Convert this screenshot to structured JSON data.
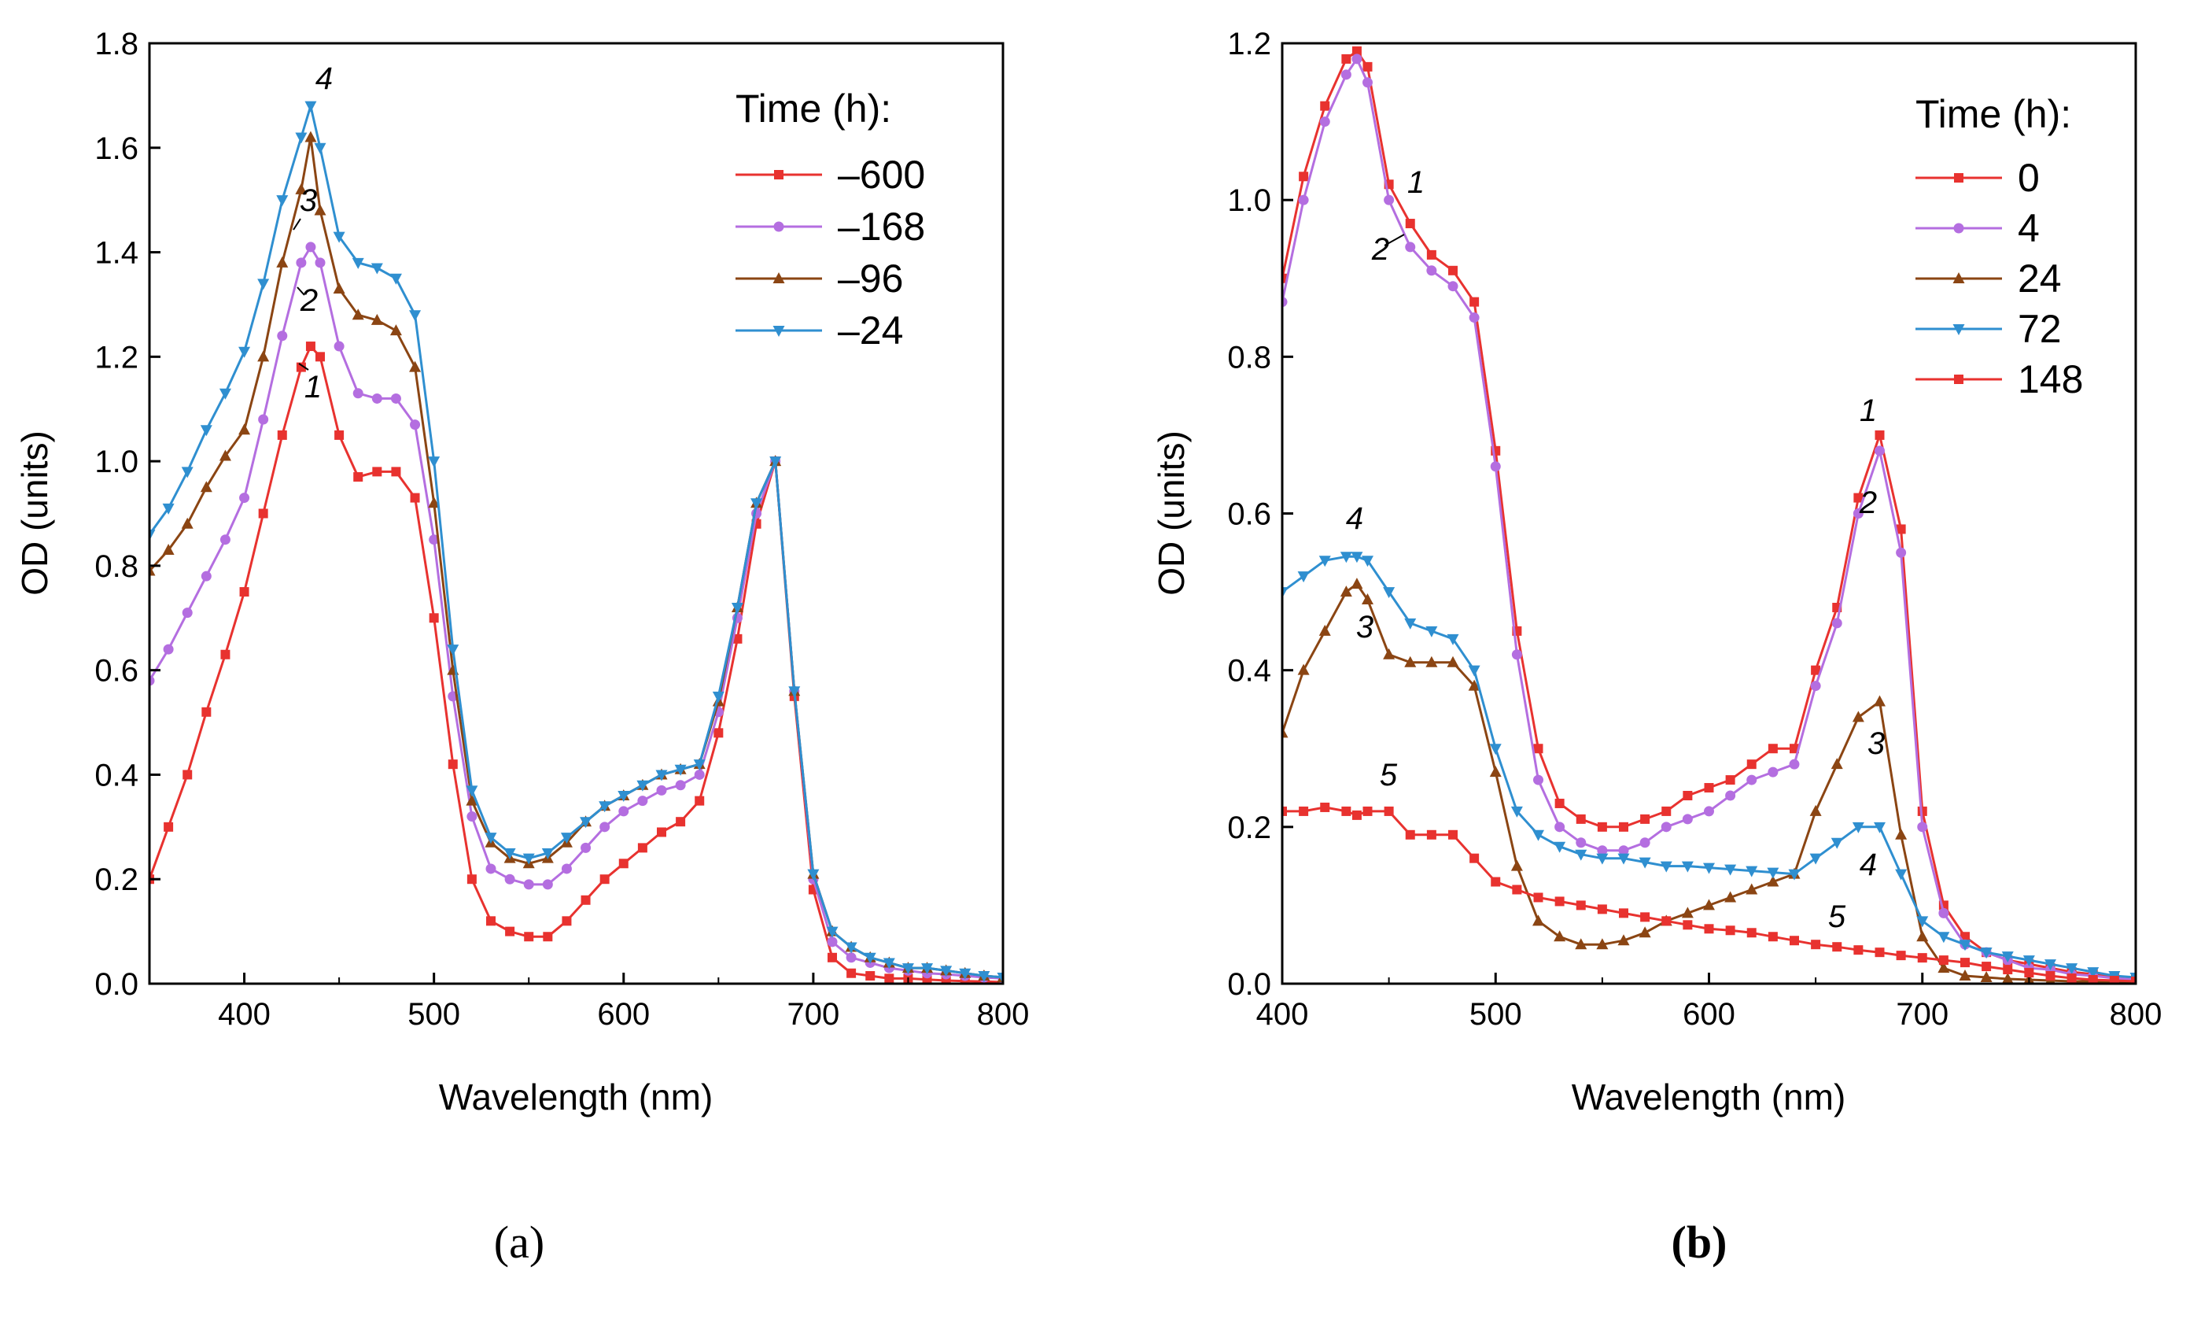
{
  "chart_data": [
    {
      "type": "line",
      "panel": "(a)",
      "panel_letter": "a",
      "xlabel": "Wavelength (nm)",
      "ylabel": "OD (units)",
      "xlim": [
        350,
        800
      ],
      "ylim": [
        0,
        1.8
      ],
      "xticks": [
        400,
        500,
        600,
        700,
        800
      ],
      "yticks": [
        0.0,
        0.2,
        0.4,
        0.6,
        0.8,
        1.0,
        1.2,
        1.4,
        1.6,
        1.8
      ],
      "ytick_labels": [
        "0.0",
        "0.2",
        "0.4",
        "0.6",
        "0.8",
        "1.0",
        "1.2",
        "1.4",
        "1.6",
        "1.8"
      ],
      "legend_title": "Time (h):",
      "legend_position": "top-right",
      "series": [
        {
          "name": "–600",
          "label": "1",
          "color": "#e8322f",
          "marker": "square",
          "x": [
            350,
            360,
            370,
            380,
            390,
            400,
            410,
            420,
            430,
            435,
            440,
            450,
            460,
            470,
            480,
            490,
            500,
            510,
            520,
            530,
            540,
            550,
            560,
            570,
            580,
            590,
            600,
            610,
            620,
            630,
            640,
            650,
            660,
            670,
            680,
            690,
            700,
            710,
            720,
            730,
            740,
            750,
            760,
            770,
            780,
            790,
            800
          ],
          "y": [
            0.2,
            0.3,
            0.4,
            0.52,
            0.63,
            0.75,
            0.9,
            1.05,
            1.18,
            1.22,
            1.2,
            1.05,
            0.97,
            0.98,
            0.98,
            0.93,
            0.7,
            0.42,
            0.2,
            0.12,
            0.1,
            0.09,
            0.09,
            0.12,
            0.16,
            0.2,
            0.23,
            0.26,
            0.29,
            0.31,
            0.35,
            0.48,
            0.66,
            0.88,
            1.0,
            0.55,
            0.18,
            0.05,
            0.02,
            0.015,
            0.01,
            0.01,
            0.008,
            0.006,
            0.005,
            0.004,
            0.003
          ]
        },
        {
          "name": "–168",
          "label": "2",
          "color": "#b46ee0",
          "marker": "circle",
          "x": [
            350,
            360,
            370,
            380,
            390,
            400,
            410,
            420,
            430,
            435,
            440,
            450,
            460,
            470,
            480,
            490,
            500,
            510,
            520,
            530,
            540,
            550,
            560,
            570,
            580,
            590,
            600,
            610,
            620,
            630,
            640,
            650,
            660,
            670,
            680,
            690,
            700,
            710,
            720,
            730,
            740,
            750,
            760,
            770,
            780,
            790,
            800
          ],
          "y": [
            0.58,
            0.64,
            0.71,
            0.78,
            0.85,
            0.93,
            1.08,
            1.24,
            1.38,
            1.41,
            1.38,
            1.22,
            1.13,
            1.12,
            1.12,
            1.07,
            0.85,
            0.55,
            0.32,
            0.22,
            0.2,
            0.19,
            0.19,
            0.22,
            0.26,
            0.3,
            0.33,
            0.35,
            0.37,
            0.38,
            0.4,
            0.52,
            0.7,
            0.9,
            1.0,
            0.56,
            0.2,
            0.08,
            0.05,
            0.04,
            0.03,
            0.025,
            0.02,
            0.018,
            0.015,
            0.012,
            0.01
          ]
        },
        {
          "name": "–96",
          "label": "3",
          "color": "#8b4513",
          "marker": "triangle-up",
          "x": [
            350,
            360,
            370,
            380,
            390,
            400,
            410,
            420,
            430,
            435,
            440,
            450,
            460,
            470,
            480,
            490,
            500,
            510,
            520,
            530,
            540,
            550,
            560,
            570,
            580,
            590,
            600,
            610,
            620,
            630,
            640,
            650,
            660,
            670,
            680,
            690,
            700,
            710,
            720,
            730,
            740,
            750,
            760,
            770,
            780,
            790,
            800
          ],
          "y": [
            0.79,
            0.83,
            0.88,
            0.95,
            1.01,
            1.06,
            1.2,
            1.38,
            1.52,
            1.62,
            1.48,
            1.33,
            1.28,
            1.27,
            1.25,
            1.18,
            0.92,
            0.6,
            0.35,
            0.27,
            0.24,
            0.23,
            0.24,
            0.27,
            0.31,
            0.34,
            0.36,
            0.38,
            0.4,
            0.41,
            0.42,
            0.54,
            0.72,
            0.92,
            1.0,
            0.56,
            0.21,
            0.1,
            0.07,
            0.05,
            0.04,
            0.03,
            0.03,
            0.025,
            0.02,
            0.015,
            0.012
          ]
        },
        {
          "name": "–24",
          "label": "4",
          "color": "#2f8fd0",
          "marker": "triangle-down",
          "x": [
            350,
            360,
            370,
            380,
            390,
            400,
            410,
            420,
            430,
            435,
            440,
            450,
            460,
            470,
            480,
            490,
            500,
            510,
            520,
            530,
            540,
            550,
            560,
            570,
            580,
            590,
            600,
            610,
            620,
            630,
            640,
            650,
            660,
            670,
            680,
            690,
            700,
            710,
            720,
            730,
            740,
            750,
            760,
            770,
            780,
            790,
            800
          ],
          "y": [
            0.86,
            0.91,
            0.98,
            1.06,
            1.13,
            1.21,
            1.34,
            1.5,
            1.62,
            1.68,
            1.6,
            1.43,
            1.38,
            1.37,
            1.35,
            1.28,
            1.0,
            0.64,
            0.37,
            0.28,
            0.25,
            0.24,
            0.25,
            0.28,
            0.31,
            0.34,
            0.36,
            0.38,
            0.4,
            0.41,
            0.42,
            0.55,
            0.72,
            0.92,
            1.0,
            0.56,
            0.21,
            0.1,
            0.07,
            0.05,
            0.04,
            0.03,
            0.03,
            0.025,
            0.02,
            0.015,
            0.012
          ]
        }
      ]
    },
    {
      "type": "line",
      "panel": "(b)",
      "panel_letter": "b",
      "xlabel": "Wavelength (nm)",
      "ylabel": "OD (units)",
      "xlim": [
        400,
        800
      ],
      "ylim": [
        0,
        1.2
      ],
      "xticks": [
        400,
        500,
        600,
        700,
        800
      ],
      "yticks": [
        0.0,
        0.2,
        0.4,
        0.6,
        0.8,
        1.0,
        1.2
      ],
      "ytick_labels": [
        "0.0",
        "0.2",
        "0.4",
        "0.6",
        "0.8",
        "1.0",
        "1.2"
      ],
      "legend_title": "Time (h):",
      "legend_position": "top-right",
      "series": [
        {
          "name": "0",
          "label": "1",
          "color": "#e8322f",
          "marker": "square",
          "x": [
            400,
            410,
            420,
            430,
            435,
            440,
            450,
            460,
            470,
            480,
            490,
            500,
            510,
            520,
            530,
            540,
            550,
            560,
            570,
            580,
            590,
            600,
            610,
            620,
            630,
            640,
            650,
            660,
            670,
            680,
            690,
            700,
            710,
            720,
            730,
            740,
            750,
            760,
            770,
            780,
            790,
            800
          ],
          "y": [
            0.9,
            1.03,
            1.12,
            1.18,
            1.19,
            1.17,
            1.02,
            0.97,
            0.93,
            0.91,
            0.87,
            0.68,
            0.45,
            0.3,
            0.23,
            0.21,
            0.2,
            0.2,
            0.21,
            0.22,
            0.24,
            0.25,
            0.26,
            0.28,
            0.3,
            0.3,
            0.4,
            0.48,
            0.62,
            0.7,
            0.58,
            0.22,
            0.1,
            0.06,
            0.04,
            0.03,
            0.025,
            0.02,
            0.015,
            0.012,
            0.008,
            0.005
          ]
        },
        {
          "name": "4",
          "label": "2",
          "color": "#b46ee0",
          "marker": "circle",
          "x": [
            400,
            410,
            420,
            430,
            435,
            440,
            450,
            460,
            470,
            480,
            490,
            500,
            510,
            520,
            530,
            540,
            550,
            560,
            570,
            580,
            590,
            600,
            610,
            620,
            630,
            640,
            650,
            660,
            670,
            680,
            690,
            700,
            710,
            720,
            730,
            740,
            750,
            760,
            770,
            780,
            790,
            800
          ],
          "y": [
            0.87,
            1.0,
            1.1,
            1.16,
            1.18,
            1.15,
            1.0,
            0.94,
            0.91,
            0.89,
            0.85,
            0.66,
            0.42,
            0.26,
            0.2,
            0.18,
            0.17,
            0.17,
            0.18,
            0.2,
            0.21,
            0.22,
            0.24,
            0.26,
            0.27,
            0.28,
            0.38,
            0.46,
            0.6,
            0.68,
            0.55,
            0.2,
            0.09,
            0.05,
            0.04,
            0.03,
            0.02,
            0.018,
            0.012,
            0.01,
            0.007,
            0.005
          ]
        },
        {
          "name": "24",
          "label": "3",
          "color": "#8b4513",
          "marker": "triangle-up",
          "x": [
            400,
            410,
            420,
            430,
            435,
            440,
            450,
            460,
            470,
            480,
            490,
            500,
            510,
            520,
            530,
            540,
            550,
            560,
            570,
            580,
            590,
            600,
            610,
            620,
            630,
            640,
            650,
            660,
            670,
            680,
            690,
            700,
            710,
            720,
            730,
            740,
            750,
            760,
            770,
            780,
            790,
            800
          ],
          "y": [
            0.32,
            0.4,
            0.45,
            0.5,
            0.51,
            0.49,
            0.42,
            0.41,
            0.41,
            0.41,
            0.38,
            0.27,
            0.15,
            0.08,
            0.06,
            0.05,
            0.05,
            0.055,
            0.065,
            0.08,
            0.09,
            0.1,
            0.11,
            0.12,
            0.13,
            0.14,
            0.22,
            0.28,
            0.34,
            0.36,
            0.19,
            0.06,
            0.02,
            0.01,
            0.008,
            0.006,
            0.005,
            0.004,
            0.003,
            0.003,
            0.002,
            0.002
          ]
        },
        {
          "name": "72",
          "label": "4",
          "color": "#2f8fd0",
          "marker": "triangle-down",
          "x": [
            400,
            410,
            420,
            430,
            435,
            440,
            450,
            460,
            470,
            480,
            490,
            500,
            510,
            520,
            530,
            540,
            550,
            560,
            570,
            580,
            590,
            600,
            610,
            620,
            630,
            640,
            650,
            660,
            670,
            680,
            690,
            700,
            710,
            720,
            730,
            740,
            750,
            760,
            770,
            780,
            790,
            800
          ],
          "y": [
            0.5,
            0.52,
            0.54,
            0.545,
            0.545,
            0.54,
            0.5,
            0.46,
            0.45,
            0.44,
            0.4,
            0.3,
            0.22,
            0.19,
            0.175,
            0.165,
            0.16,
            0.16,
            0.155,
            0.15,
            0.15,
            0.148,
            0.146,
            0.144,
            0.142,
            0.14,
            0.16,
            0.18,
            0.2,
            0.2,
            0.14,
            0.08,
            0.06,
            0.05,
            0.04,
            0.035,
            0.03,
            0.025,
            0.02,
            0.015,
            0.01,
            0.008
          ]
        },
        {
          "name": "148",
          "label": "5",
          "color": "#e8322f",
          "marker": "square",
          "x": [
            400,
            410,
            420,
            430,
            435,
            440,
            450,
            460,
            470,
            480,
            490,
            500,
            510,
            520,
            530,
            540,
            550,
            560,
            570,
            580,
            590,
            600,
            610,
            620,
            630,
            640,
            650,
            660,
            670,
            680,
            690,
            700,
            710,
            720,
            730,
            740,
            750,
            760,
            770,
            780,
            790,
            800
          ],
          "y": [
            0.22,
            0.22,
            0.225,
            0.22,
            0.215,
            0.22,
            0.22,
            0.19,
            0.19,
            0.19,
            0.16,
            0.13,
            0.12,
            0.11,
            0.105,
            0.1,
            0.095,
            0.09,
            0.085,
            0.08,
            0.075,
            0.07,
            0.068,
            0.065,
            0.06,
            0.055,
            0.05,
            0.047,
            0.043,
            0.04,
            0.036,
            0.033,
            0.03,
            0.027,
            0.022,
            0.018,
            0.014,
            0.01,
            0.007,
            0.005,
            0.004,
            0.003
          ]
        }
      ]
    }
  ]
}
